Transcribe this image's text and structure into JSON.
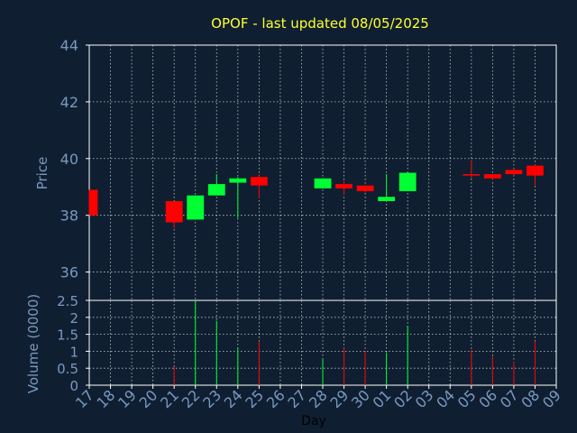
{
  "title": "OPOF - last updated 08/05/2025",
  "colors": {
    "background": "#0f1f31",
    "title": "#ffff33",
    "up": "#00ff33",
    "down": "#ff0000",
    "axis_text": "#7a98bf",
    "grid": "#ffffff"
  },
  "chart_data": {
    "type": "candlestick",
    "title": "OPOF - last updated 08/05/2025",
    "xlabel": "Day",
    "x_ticks": [
      "17",
      "18",
      "19",
      "20",
      "21",
      "22",
      "23",
      "24",
      "25",
      "26",
      "27",
      "28",
      "29",
      "30",
      "01",
      "02",
      "03",
      "04",
      "05",
      "06",
      "07",
      "08",
      "09"
    ],
    "price_panel": {
      "ylabel": "Price",
      "ylim": [
        35,
        44
      ],
      "y_ticks": [
        "36",
        "38",
        "40",
        "42",
        "44"
      ],
      "y_tick_values": [
        36,
        38,
        40,
        42,
        44
      ],
      "grid": true
    },
    "volume_panel": {
      "ylabel": "Volume (0000)",
      "ylim": [
        0,
        2.5
      ],
      "y_ticks": [
        "0",
        "0.5",
        "1",
        "1.5",
        "2",
        "2.5"
      ],
      "y_tick_values": [
        0,
        0.5,
        1,
        1.5,
        2,
        2.5
      ],
      "grid": true
    },
    "candles": [
      {
        "day": "17",
        "open": 38.9,
        "high": 38.9,
        "low": 38.0,
        "close": 38.0,
        "volume": 0.0
      },
      {
        "day": "21",
        "open": 38.5,
        "high": 38.5,
        "low": 37.55,
        "close": 37.75,
        "volume": 0.55
      },
      {
        "day": "22",
        "open": 37.85,
        "high": 38.7,
        "low": 37.85,
        "close": 38.7,
        "volume": 2.5
      },
      {
        "day": "23",
        "open": 38.7,
        "high": 39.45,
        "low": 38.7,
        "close": 39.1,
        "volume": 1.9
      },
      {
        "day": "24",
        "open": 39.15,
        "high": 39.35,
        "low": 37.9,
        "close": 39.3,
        "volume": 1.1
      },
      {
        "day": "25",
        "open": 39.35,
        "high": 39.45,
        "low": 38.6,
        "close": 39.05,
        "volume": 1.3
      },
      {
        "day": "28",
        "open": 38.95,
        "high": 39.3,
        "low": 38.95,
        "close": 39.3,
        "volume": 0.75
      },
      {
        "day": "29",
        "open": 39.1,
        "high": 39.2,
        "low": 38.75,
        "close": 38.95,
        "volume": 1.1
      },
      {
        "day": "30",
        "open": 39.05,
        "high": 39.05,
        "low": 38.8,
        "close": 38.85,
        "volume": 1.0
      },
      {
        "day": "01",
        "open": 38.5,
        "high": 39.45,
        "low": 38.5,
        "close": 38.65,
        "volume": 0.95
      },
      {
        "day": "02",
        "open": 38.85,
        "high": 39.5,
        "low": 38.85,
        "close": 39.5,
        "volume": 1.75
      },
      {
        "day": "05",
        "open": 39.45,
        "high": 39.95,
        "low": 39.3,
        "close": 39.4,
        "volume": 1.05
      },
      {
        "day": "06",
        "open": 39.45,
        "high": 39.45,
        "low": 39.25,
        "close": 39.3,
        "volume": 0.85
      },
      {
        "day": "07",
        "open": 39.6,
        "high": 39.65,
        "low": 39.4,
        "close": 39.45,
        "volume": 0.7
      },
      {
        "day": "08",
        "open": 39.75,
        "high": 39.8,
        "low": 39.05,
        "close": 39.4,
        "volume": 1.3
      }
    ]
  }
}
